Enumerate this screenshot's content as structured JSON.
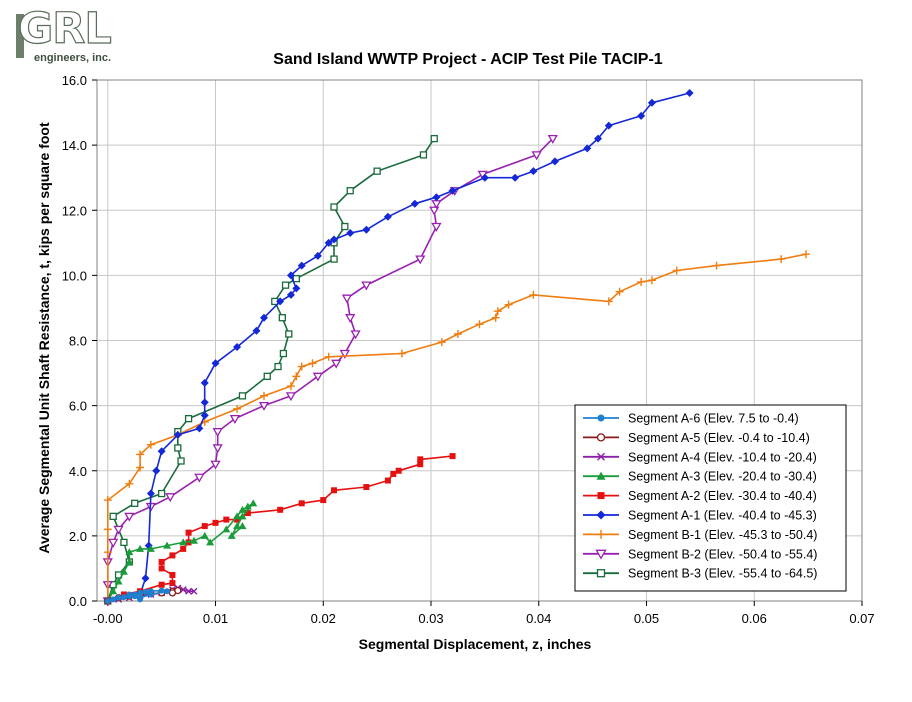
{
  "logo": {
    "letters": "GRL",
    "subtitle": "engineers, inc."
  },
  "colors": {
    "A-6": "#1f7fd1",
    "A-5": "#8b1a1a",
    "A-4": "#8c1ea8",
    "A-3": "#1a9c3a",
    "A-2": "#e51010",
    "A-1": "#1428d8",
    "B-1": "#f07d10",
    "B-2": "#9a20b0",
    "B-3": "#1a6b3c",
    "grid": "#c8c8c8"
  },
  "chart_data": {
    "type": "line",
    "title": "Sand Island WWTP Project - ACIP Test Pile TACIP-1",
    "xlabel": "Segmental Displacement, z, inches",
    "ylabel": "Average Segmental Unit Shaft Resistance, t, kips per square foot",
    "xlim": [
      -0.001,
      0.07
    ],
    "ylim": [
      0,
      16
    ],
    "xticks": [
      "-0.00",
      "0.01",
      "0.02",
      "0.03",
      "0.04",
      "0.05",
      "0.06",
      "0.07"
    ],
    "xtick_values": [
      0,
      0.01,
      0.02,
      0.03,
      0.04,
      0.05,
      0.06,
      0.07
    ],
    "yticks": [
      "0.0",
      "2.0",
      "4.0",
      "6.0",
      "8.0",
      "10.0",
      "12.0",
      "14.0",
      "16.0"
    ],
    "ytick_values": [
      0,
      2,
      4,
      6,
      8,
      10,
      12,
      14,
      16
    ],
    "grid": true,
    "legend_position": "lower-right",
    "series": [
      {
        "key": "A-6",
        "name": "Segment A-6 (Elev. 7.5 to -0.4)",
        "marker": "circle",
        "points": [
          [
            0,
            0
          ],
          [
            0.0005,
            0.05
          ],
          [
            0.001,
            0.1
          ],
          [
            0.0015,
            0.12
          ],
          [
            0.002,
            0.15
          ],
          [
            0.0025,
            0.2
          ],
          [
            0.003,
            0.25
          ],
          [
            0.0035,
            0.28
          ],
          [
            0.004,
            0.3
          ],
          [
            0.005,
            0.32
          ],
          [
            0.0055,
            0.3
          ],
          [
            0.004,
            0.2
          ],
          [
            0.003,
            0.1
          ],
          [
            0.0025,
            0.15
          ],
          [
            0.002,
            0.2
          ],
          [
            0.003,
            0.05
          ]
        ]
      },
      {
        "key": "A-5",
        "name": "Segment A-5 (Elev. -0.4 to -10.4)",
        "marker": "open-circle",
        "points": [
          [
            0,
            0
          ],
          [
            0.001,
            0.1
          ],
          [
            0.002,
            0.15
          ],
          [
            0.003,
            0.2
          ],
          [
            0.004,
            0.22
          ],
          [
            0.005,
            0.25
          ],
          [
            0.006,
            0.3
          ],
          [
            0.0065,
            0.32
          ],
          [
            0.006,
            0.25
          ]
        ]
      },
      {
        "key": "A-4",
        "name": "Segment A-4 (Elev. -10.4 to -20.4)",
        "marker": "x",
        "points": [
          [
            0,
            0
          ],
          [
            0.001,
            0.05
          ],
          [
            0.002,
            0.1
          ],
          [
            0.003,
            0.15
          ],
          [
            0.004,
            0.2
          ],
          [
            0.005,
            0.25
          ],
          [
            0.006,
            0.35
          ],
          [
            0.0065,
            0.4
          ],
          [
            0.007,
            0.35
          ],
          [
            0.0075,
            0.3
          ],
          [
            0.008,
            0.3
          ]
        ]
      },
      {
        "key": "A-3",
        "name": "Segment A-3 (Elev. -20.4 to -30.4)",
        "marker": "triangle",
        "points": [
          [
            0,
            0
          ],
          [
            0.0005,
            0.3
          ],
          [
            0.001,
            0.6
          ],
          [
            0.0015,
            0.9
          ],
          [
            0.002,
            1.2
          ],
          [
            0.002,
            1.5
          ],
          [
            0.003,
            1.6
          ],
          [
            0.004,
            1.6
          ],
          [
            0.0055,
            1.7
          ],
          [
            0.007,
            1.8
          ],
          [
            0.008,
            1.85
          ],
          [
            0.009,
            2.0
          ],
          [
            0.0095,
            1.8
          ],
          [
            0.011,
            2.2
          ],
          [
            0.012,
            2.6
          ],
          [
            0.0125,
            2.8
          ],
          [
            0.013,
            2.9
          ],
          [
            0.0135,
            3.0
          ],
          [
            0.0125,
            2.6
          ],
          [
            0.012,
            2.3
          ],
          [
            0.0115,
            2.0
          ],
          [
            0.0125,
            2.3
          ]
        ]
      },
      {
        "key": "A-2",
        "name": "Segment A-2 (Elev. -30.4 to -40.4)",
        "marker": "square",
        "points": [
          [
            0,
            0
          ],
          [
            0.0015,
            0.2
          ],
          [
            0.003,
            0.3
          ],
          [
            0.005,
            0.5
          ],
          [
            0.006,
            0.55
          ],
          [
            0.006,
            0.8
          ],
          [
            0.005,
            1.0
          ],
          [
            0.005,
            1.2
          ],
          [
            0.006,
            1.4
          ],
          [
            0.007,
            1.6
          ],
          [
            0.0075,
            1.8
          ],
          [
            0.0075,
            2.1
          ],
          [
            0.009,
            2.3
          ],
          [
            0.01,
            2.4
          ],
          [
            0.011,
            2.5
          ],
          [
            0.012,
            2.5
          ],
          [
            0.013,
            2.7
          ],
          [
            0.016,
            2.8
          ],
          [
            0.018,
            3.0
          ],
          [
            0.02,
            3.1
          ],
          [
            0.021,
            3.4
          ],
          [
            0.024,
            3.5
          ],
          [
            0.026,
            3.7
          ],
          [
            0.0265,
            3.9
          ],
          [
            0.027,
            4.0
          ],
          [
            0.029,
            4.2
          ],
          [
            0.029,
            4.35
          ],
          [
            0.032,
            4.45
          ]
        ]
      },
      {
        "key": "A-1",
        "name": "Segment A-1 (Elev. -40.4 to -45.3)",
        "marker": "diamond",
        "points": [
          [
            0,
            0
          ],
          [
            0.003,
            0.2
          ],
          [
            0.0035,
            0.7
          ],
          [
            0.0038,
            1.7
          ],
          [
            0.004,
            3.3
          ],
          [
            0.0045,
            4.0
          ],
          [
            0.005,
            4.6
          ],
          [
            0.0065,
            5.1
          ],
          [
            0.0085,
            5.3
          ],
          [
            0.009,
            5.7
          ],
          [
            0.009,
            6.1
          ],
          [
            0.009,
            6.7
          ],
          [
            0.01,
            7.3
          ],
          [
            0.012,
            7.8
          ],
          [
            0.0138,
            8.3
          ],
          [
            0.0145,
            8.7
          ],
          [
            0.016,
            9.2
          ],
          [
            0.017,
            9.4
          ],
          [
            0.0175,
            9.6
          ],
          [
            0.017,
            10.0
          ],
          [
            0.018,
            10.3
          ],
          [
            0.0195,
            10.6
          ],
          [
            0.0205,
            11.0
          ],
          [
            0.021,
            11.1
          ],
          [
            0.0225,
            11.3
          ],
          [
            0.024,
            11.4
          ],
          [
            0.026,
            11.8
          ],
          [
            0.0285,
            12.2
          ],
          [
            0.0305,
            12.4
          ],
          [
            0.032,
            12.6
          ],
          [
            0.035,
            13.0
          ],
          [
            0.0378,
            13.0
          ],
          [
            0.0395,
            13.2
          ],
          [
            0.0415,
            13.5
          ],
          [
            0.0445,
            13.9
          ],
          [
            0.0455,
            14.2
          ],
          [
            0.0465,
            14.6
          ],
          [
            0.0495,
            14.9
          ],
          [
            0.0505,
            15.3
          ],
          [
            0.054,
            15.6
          ]
        ]
      },
      {
        "key": "B-1",
        "name": "Segment B-1 (Elev. -45.3 to -50.4)",
        "marker": "plus",
        "points": [
          [
            0,
            0
          ],
          [
            0,
            1.5
          ],
          [
            0,
            2.2
          ],
          [
            0,
            3.1
          ],
          [
            0.002,
            3.6
          ],
          [
            0.003,
            4.1
          ],
          [
            0.003,
            4.5
          ],
          [
            0.004,
            4.8
          ],
          [
            0.0065,
            5.1
          ],
          [
            0.009,
            5.5
          ],
          [
            0.012,
            5.9
          ],
          [
            0.0145,
            6.3
          ],
          [
            0.017,
            6.6
          ],
          [
            0.0175,
            6.9
          ],
          [
            0.018,
            7.2
          ],
          [
            0.019,
            7.3
          ],
          [
            0.0205,
            7.5
          ],
          [
            0.0273,
            7.6
          ],
          [
            0.031,
            7.95
          ],
          [
            0.0325,
            8.2
          ],
          [
            0.0345,
            8.5
          ],
          [
            0.036,
            8.7
          ],
          [
            0.0362,
            8.9
          ],
          [
            0.0372,
            9.1
          ],
          [
            0.0395,
            9.4
          ],
          [
            0.0465,
            9.2
          ],
          [
            0.0475,
            9.5
          ],
          [
            0.0495,
            9.8
          ],
          [
            0.0505,
            9.85
          ],
          [
            0.0528,
            10.15
          ],
          [
            0.0565,
            10.3
          ],
          [
            0.0625,
            10.5
          ],
          [
            0.0648,
            10.65
          ]
        ]
      },
      {
        "key": "B-2",
        "name": "Segment B-2 (Elev. -50.4 to -55.4)",
        "marker": "inv-triangle",
        "points": [
          [
            0,
            0
          ],
          [
            0,
            0.5
          ],
          [
            0,
            1.2
          ],
          [
            0.0005,
            1.8
          ],
          [
            0.001,
            2.2
          ],
          [
            0.002,
            2.6
          ],
          [
            0.004,
            2.9
          ],
          [
            0.0058,
            3.2
          ],
          [
            0.0085,
            3.8
          ],
          [
            0.01,
            4.2
          ],
          [
            0.0102,
            4.7
          ],
          [
            0.0102,
            5.2
          ],
          [
            0.0118,
            5.6
          ],
          [
            0.0145,
            6.0
          ],
          [
            0.017,
            6.3
          ],
          [
            0.0195,
            6.9
          ],
          [
            0.0212,
            7.3
          ],
          [
            0.022,
            7.6
          ],
          [
            0.023,
            8.2
          ],
          [
            0.0225,
            8.7
          ],
          [
            0.0222,
            9.3
          ],
          [
            0.024,
            9.7
          ],
          [
            0.029,
            10.5
          ],
          [
            0.0305,
            11.5
          ],
          [
            0.0303,
            12.0
          ],
          [
            0.0305,
            12.2
          ],
          [
            0.0322,
            12.6
          ],
          [
            0.0348,
            13.1
          ],
          [
            0.0398,
            13.7
          ],
          [
            0.0413,
            14.2
          ]
        ]
      },
      {
        "key": "B-3",
        "name": "Segment B-3 (Elev. -55.4 to -64.5)",
        "marker": "open-square",
        "points": [
          [
            0,
            0
          ],
          [
            0.0005,
            0.5
          ],
          [
            0.001,
            0.8
          ],
          [
            0.002,
            1.2
          ],
          [
            0.0015,
            1.8
          ],
          [
            0.0005,
            2.6
          ],
          [
            0.0025,
            3.0
          ],
          [
            0.005,
            3.3
          ],
          [
            0.0068,
            4.3
          ],
          [
            0.0065,
            4.7
          ],
          [
            0.0065,
            5.2
          ],
          [
            0.0075,
            5.6
          ],
          [
            0.0125,
            6.3
          ],
          [
            0.0148,
            6.9
          ],
          [
            0.0158,
            7.2
          ],
          [
            0.0163,
            7.6
          ],
          [
            0.0168,
            8.2
          ],
          [
            0.0162,
            8.7
          ],
          [
            0.0155,
            9.2
          ],
          [
            0.0165,
            9.7
          ],
          [
            0.0175,
            9.9
          ],
          [
            0.021,
            10.5
          ],
          [
            0.021,
            11.0
          ],
          [
            0.022,
            11.5
          ],
          [
            0.021,
            12.1
          ],
          [
            0.0225,
            12.6
          ],
          [
            0.025,
            13.2
          ],
          [
            0.0293,
            13.7
          ],
          [
            0.0303,
            14.2
          ]
        ]
      }
    ]
  }
}
